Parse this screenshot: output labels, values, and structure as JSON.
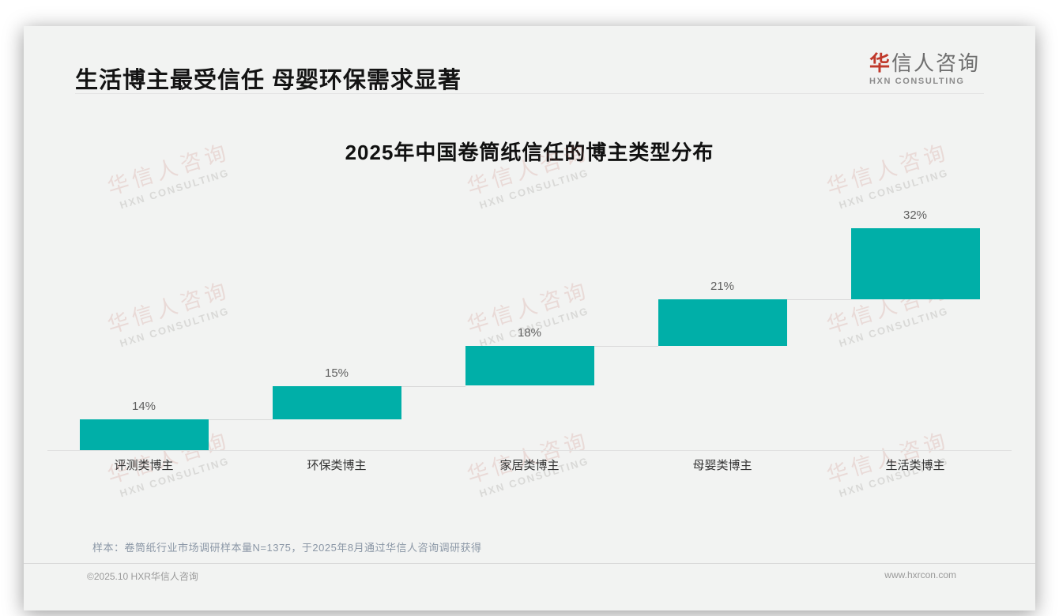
{
  "header": {
    "title": "生活博主最受信任 母婴环保需求显著"
  },
  "logo": {
    "cn_first": "华",
    "cn_rest": "信人咨询",
    "en": "HXN CONSULTING"
  },
  "watermark": {
    "cn": "华信人咨询",
    "en": "HXN CONSULTING"
  },
  "note": "样本：卷筒纸行业市场调研样本量N=1375，于2025年8月通过华信人咨询调研获得",
  "footer": {
    "copyright": "©2025.10 HXR华信人咨询",
    "website": "www.hxrcon.com"
  },
  "chart_data": {
    "type": "bar",
    "subtype": "ascending-staircase-waterfall",
    "title": "2025年中国卷筒纸信任的博主类型分布",
    "categories": [
      "评测类博主",
      "环保类博主",
      "家居类博主",
      "母婴类博主",
      "生活类博主"
    ],
    "values": [
      14,
      15,
      18,
      21,
      32
    ],
    "value_labels": [
      "14%",
      "15%",
      "18%",
      "21%",
      "32%"
    ],
    "cumulative_starts": [
      0,
      14,
      29,
      47,
      68
    ],
    "unit": "%",
    "ylim": [
      0,
      100
    ],
    "grid": false,
    "legend": false,
    "bar_color": "#00AFA8",
    "value_label_color": "#5f5f5f",
    "axis_label_color": "#333333"
  }
}
